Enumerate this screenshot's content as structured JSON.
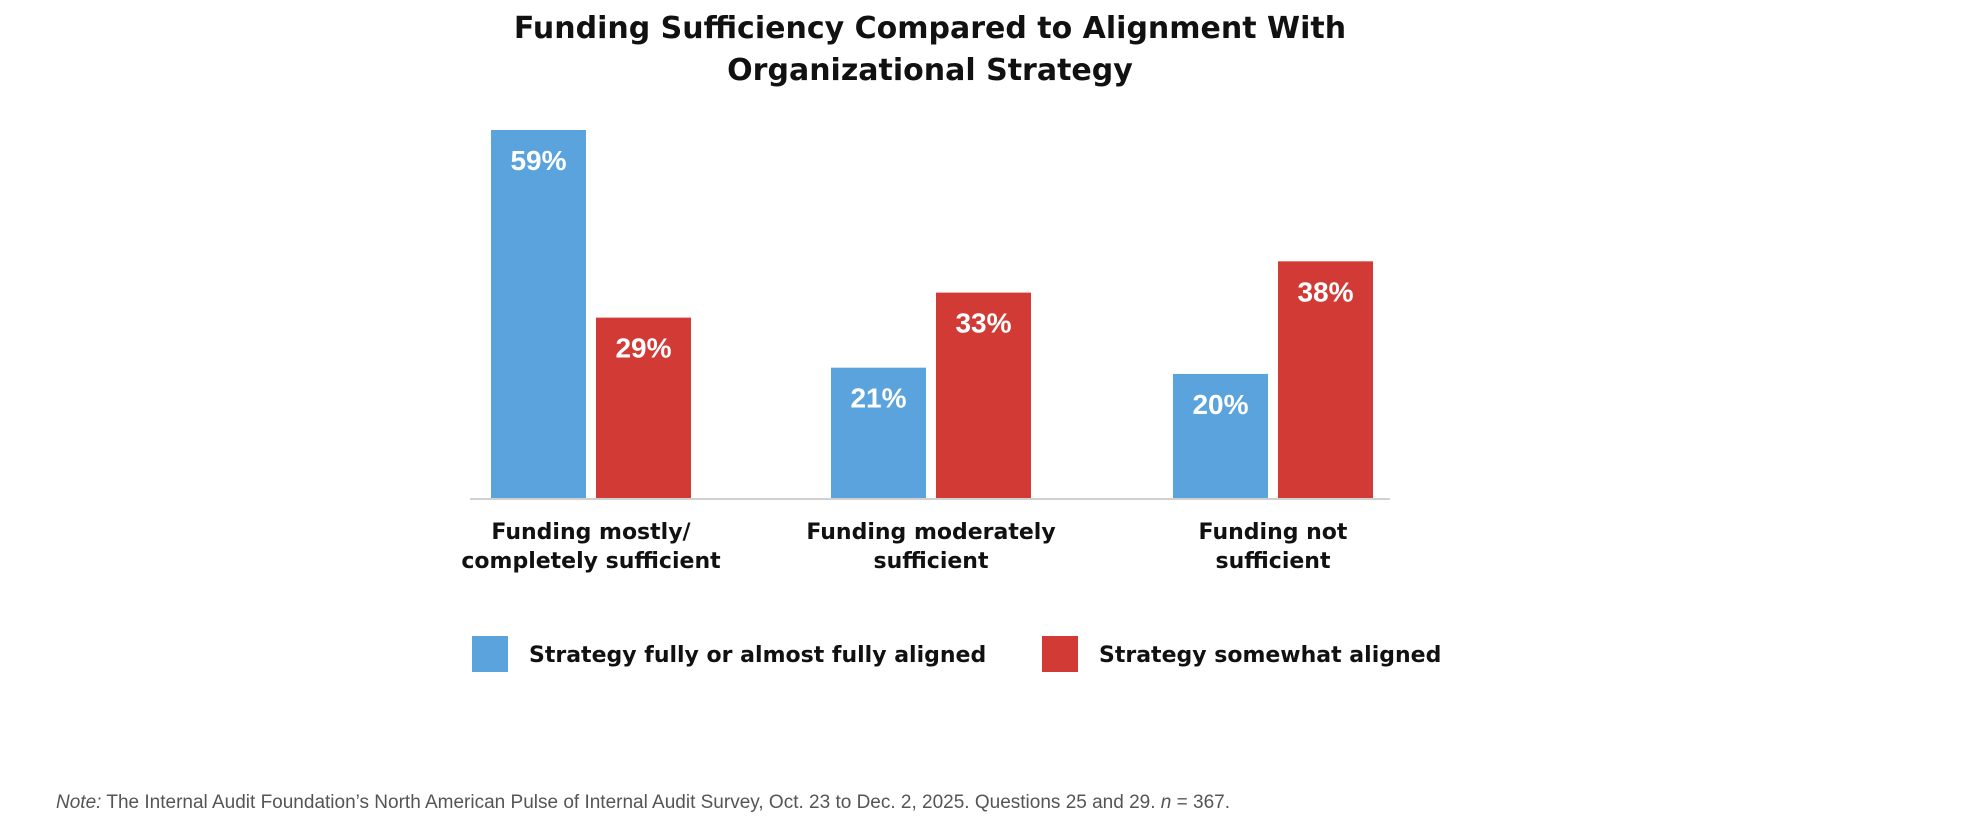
{
  "chart_data": {
    "type": "bar",
    "title_lines": [
      "Funding Sufficiency Compared to Alignment With",
      "Organizational Strategy"
    ],
    "categories": [
      [
        "Funding mostly/",
        "completely sufficient"
      ],
      [
        "Funding moderately",
        "sufficient"
      ],
      [
        "Funding not",
        "sufficient"
      ]
    ],
    "series": [
      {
        "name": "Strategy fully or almost fully aligned",
        "color": "#5BA3DC",
        "values": [
          59,
          21,
          20
        ],
        "labels": [
          "59%",
          "21%",
          "20%"
        ]
      },
      {
        "name": "Strategy somewhat aligned",
        "color": "#D23A35",
        "values": [
          29,
          33,
          38
        ],
        "labels": [
          "29%",
          "33%",
          "38%"
        ]
      }
    ],
    "ylim": [
      0,
      59
    ],
    "grid": false,
    "legend_position": "bottom",
    "xlabel": "",
    "ylabel": ""
  },
  "note": {
    "prefix": "Note:",
    "text": "The Internal Audit Foundation’s North American Pulse of Internal Audit Survey, Oct. 23 to Dec. 2, 2025. Questions 25 and 29.",
    "n_symbol": "n",
    "n_text": "= 367."
  }
}
